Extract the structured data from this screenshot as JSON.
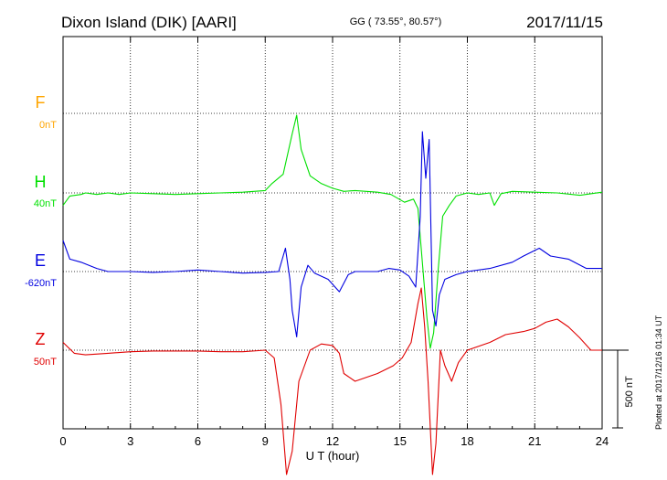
{
  "header": {
    "station": "Dixon Island (DIK)  [AARI]",
    "coords": "GG ( 73.55°,  80.57°)",
    "date": "2017/11/15"
  },
  "side_note": "Plotted at 2017/12/16 01:34 UT",
  "colors": {
    "F": "#ffa500",
    "H": "#00e000",
    "E": "#0000e0",
    "Z": "#e00000",
    "axis": "#000000",
    "grid": "#000000"
  },
  "chart_data": {
    "type": "line",
    "xlabel": "U T (hour)",
    "xlim": [
      0,
      24
    ],
    "x_ticks": [
      0,
      3,
      6,
      9,
      12,
      15,
      18,
      21,
      24
    ],
    "grid": true,
    "scale_bar": {
      "value": 500,
      "label": "500 nT"
    },
    "series": [
      {
        "name": "F",
        "baseline_label": "0nT",
        "key": "F",
        "points": []
      },
      {
        "name": "H",
        "baseline_label": "40nT",
        "key": "H",
        "points": [
          [
            0,
            -80
          ],
          [
            0.3,
            -20
          ],
          [
            0.8,
            -10
          ],
          [
            1,
            0
          ],
          [
            1.5,
            -10
          ],
          [
            2,
            0
          ],
          [
            2.5,
            -10
          ],
          [
            3,
            0
          ],
          [
            4,
            -5
          ],
          [
            5,
            -10
          ],
          [
            6,
            -5
          ],
          [
            7,
            0
          ],
          [
            8,
            5
          ],
          [
            9,
            15
          ],
          [
            9.3,
            60
          ],
          [
            9.8,
            120
          ],
          [
            10.2,
            380
          ],
          [
            10.4,
            500
          ],
          [
            10.6,
            280
          ],
          [
            11,
            110
          ],
          [
            11.5,
            60
          ],
          [
            12,
            30
          ],
          [
            12.5,
            10
          ],
          [
            13,
            15
          ],
          [
            14,
            5
          ],
          [
            14.6,
            -10
          ],
          [
            15.2,
            -60
          ],
          [
            15.6,
            -40
          ],
          [
            15.8,
            -100
          ],
          [
            16,
            -450
          ],
          [
            16.2,
            -800
          ],
          [
            16.35,
            -1000
          ],
          [
            16.5,
            -900
          ],
          [
            16.7,
            -500
          ],
          [
            16.9,
            -150
          ],
          [
            17.2,
            -80
          ],
          [
            17.5,
            -20
          ],
          [
            18,
            0
          ],
          [
            18.5,
            -10
          ],
          [
            19,
            0
          ],
          [
            19.2,
            -80
          ],
          [
            19.5,
            -5
          ],
          [
            20,
            10
          ],
          [
            21,
            5
          ],
          [
            22,
            0
          ],
          [
            23,
            -15
          ],
          [
            24,
            5
          ]
        ]
      },
      {
        "name": "E",
        "baseline_label": "-620nT",
        "key": "E",
        "points": [
          [
            0,
            200
          ],
          [
            0.3,
            80
          ],
          [
            0.8,
            60
          ],
          [
            1.5,
            20
          ],
          [
            2,
            0
          ],
          [
            3,
            0
          ],
          [
            4,
            -5
          ],
          [
            5,
            0
          ],
          [
            6,
            10
          ],
          [
            7,
            0
          ],
          [
            8,
            -10
          ],
          [
            9,
            -5
          ],
          [
            9.6,
            0
          ],
          [
            9.9,
            150
          ],
          [
            10.1,
            -50
          ],
          [
            10.2,
            -250
          ],
          [
            10.4,
            -420
          ],
          [
            10.6,
            -100
          ],
          [
            10.9,
            40
          ],
          [
            11.2,
            -10
          ],
          [
            11.8,
            -50
          ],
          [
            12.3,
            -130
          ],
          [
            12.7,
            -20
          ],
          [
            13,
            0
          ],
          [
            14,
            0
          ],
          [
            14.5,
            20
          ],
          [
            15,
            10
          ],
          [
            15.4,
            -30
          ],
          [
            15.7,
            -100
          ],
          [
            15.9,
            350
          ],
          [
            16,
            900
          ],
          [
            16.15,
            600
          ],
          [
            16.3,
            850
          ],
          [
            16.45,
            -250
          ],
          [
            16.6,
            -350
          ],
          [
            16.75,
            -150
          ],
          [
            17,
            -50
          ],
          [
            17.5,
            -20
          ],
          [
            18,
            0
          ],
          [
            19,
            20
          ],
          [
            20,
            60
          ],
          [
            20.5,
            100
          ],
          [
            21.2,
            150
          ],
          [
            21.7,
            100
          ],
          [
            22.5,
            80
          ],
          [
            23.3,
            20
          ],
          [
            24,
            20
          ]
        ]
      },
      {
        "name": "Z",
        "baseline_label": "50nT",
        "key": "Z",
        "points": [
          [
            0,
            50
          ],
          [
            0.5,
            -20
          ],
          [
            1,
            -30
          ],
          [
            2,
            -20
          ],
          [
            3,
            -10
          ],
          [
            4,
            -5
          ],
          [
            5,
            -5
          ],
          [
            6,
            -5
          ],
          [
            7,
            -10
          ],
          [
            8,
            -10
          ],
          [
            9,
            0
          ],
          [
            9.4,
            -50
          ],
          [
            9.7,
            -350
          ],
          [
            9.95,
            -800
          ],
          [
            10.2,
            -650
          ],
          [
            10.5,
            -200
          ],
          [
            11,
            0
          ],
          [
            11.5,
            40
          ],
          [
            12,
            30
          ],
          [
            12.3,
            -20
          ],
          [
            12.5,
            -150
          ],
          [
            13,
            -200
          ],
          [
            14,
            -150
          ],
          [
            14.7,
            -100
          ],
          [
            15.1,
            -50
          ],
          [
            15.5,
            50
          ],
          [
            15.8,
            300
          ],
          [
            15.95,
            400
          ],
          [
            16.1,
            150
          ],
          [
            16.25,
            -200
          ],
          [
            16.45,
            -800
          ],
          [
            16.6,
            -600
          ],
          [
            16.8,
            0
          ],
          [
            17,
            -100
          ],
          [
            17.3,
            -200
          ],
          [
            17.6,
            -80
          ],
          [
            18,
            0
          ],
          [
            19,
            50
          ],
          [
            19.7,
            100
          ],
          [
            20.5,
            120
          ],
          [
            21,
            140
          ],
          [
            21.5,
            180
          ],
          [
            22,
            200
          ],
          [
            22.5,
            150
          ],
          [
            23,
            80
          ],
          [
            23.5,
            0
          ],
          [
            24,
            0
          ]
        ]
      }
    ]
  }
}
